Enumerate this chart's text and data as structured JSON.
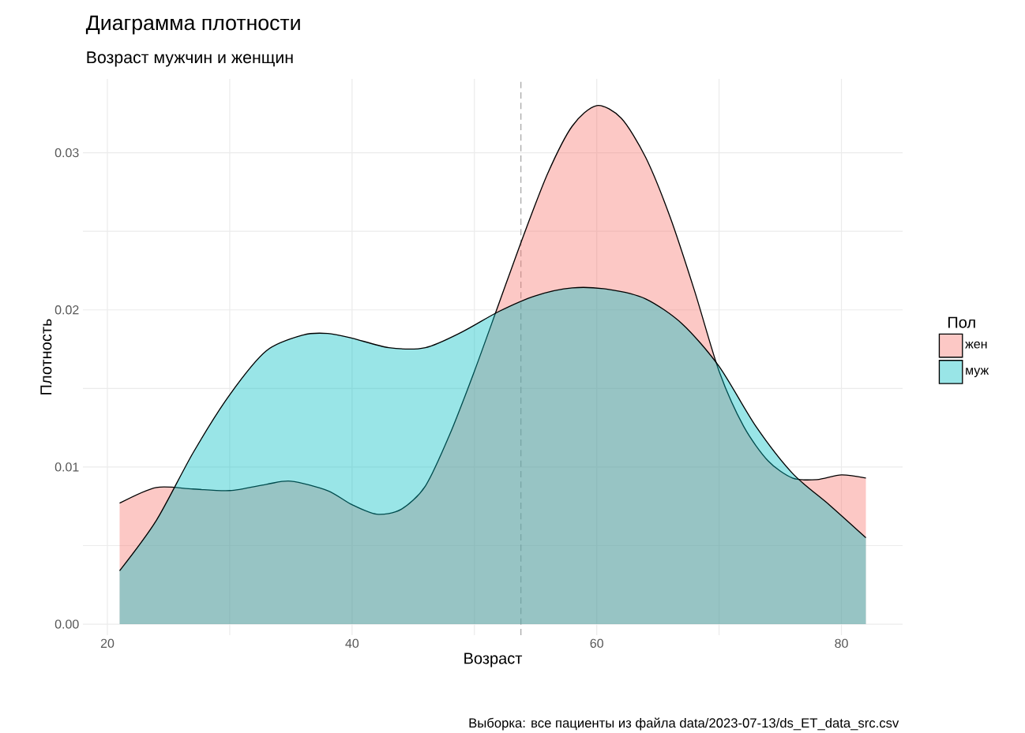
{
  "chart_data": {
    "type": "area",
    "title": "Диаграмма плотности",
    "subtitle": "Возраст мужчин и женщин",
    "xlabel": "Возраст",
    "ylabel": "Плотность",
    "legend_title": "Пол",
    "annotations": [
      "Выборка: все пациенты из файла data/2023-07-13/ds_ET_data_src.csv"
    ],
    "xlim": [
      18,
      85
    ],
    "ylim": [
      -0.0007,
      0.0347
    ],
    "xticks": [
      20,
      {
        "value": 30,
        "label": null
      },
      40,
      {
        "value": 50,
        "label": null
      },
      60,
      {
        "value": 70,
        "label": null
      },
      80
    ],
    "yticks": [
      {
        "value": 0,
        "label": "0.00"
      },
      {
        "value": 0.005,
        "label": null
      },
      {
        "value": 0.01,
        "label": "0.01"
      },
      {
        "value": 0.015,
        "label": null
      },
      {
        "value": 0.02,
        "label": "0.02"
      },
      {
        "value": 0.025,
        "label": null
      },
      {
        "value": 0.03,
        "label": "0.03"
      }
    ],
    "grid": true,
    "legend": "right",
    "ref_lines": [
      {
        "axis": "x",
        "value": 53.8,
        "color": "#aaaaaa",
        "line_style": "dashed"
      }
    ],
    "series": [
      {
        "name": "жен",
        "color": "#f8766d",
        "x": [
          21,
          24,
          27,
          30,
          33,
          35,
          38,
          40,
          42,
          44,
          46,
          48,
          50,
          52,
          54,
          56,
          58,
          60,
          62,
          64,
          66,
          68,
          70,
          72,
          74,
          76,
          78,
          80,
          82
        ],
        "values": [
          0.0077,
          0.0087,
          0.0086,
          0.0085,
          0.0089,
          0.0091,
          0.0085,
          0.0076,
          0.007,
          0.0073,
          0.0088,
          0.0121,
          0.0161,
          0.0204,
          0.0247,
          0.0287,
          0.0317,
          0.033,
          0.0322,
          0.0297,
          0.0259,
          0.0212,
          0.0161,
          0.0126,
          0.0104,
          0.0093,
          0.0092,
          0.0095,
          0.0093
        ]
      },
      {
        "name": "муж",
        "color": "#00bfc4",
        "x": [
          21,
          24,
          27,
          30,
          33,
          36,
          38,
          40,
          43,
          46,
          49,
          52,
          55,
          58,
          61,
          64,
          67,
          70,
          73,
          76,
          79,
          82
        ],
        "values": [
          0.0034,
          0.0066,
          0.0109,
          0.0146,
          0.0174,
          0.0184,
          0.0185,
          0.0182,
          0.0176,
          0.0176,
          0.0186,
          0.0199,
          0.0209,
          0.0214,
          0.0213,
          0.0207,
          0.0191,
          0.0164,
          0.0126,
          0.0096,
          0.0076,
          0.0055
        ]
      }
    ]
  }
}
